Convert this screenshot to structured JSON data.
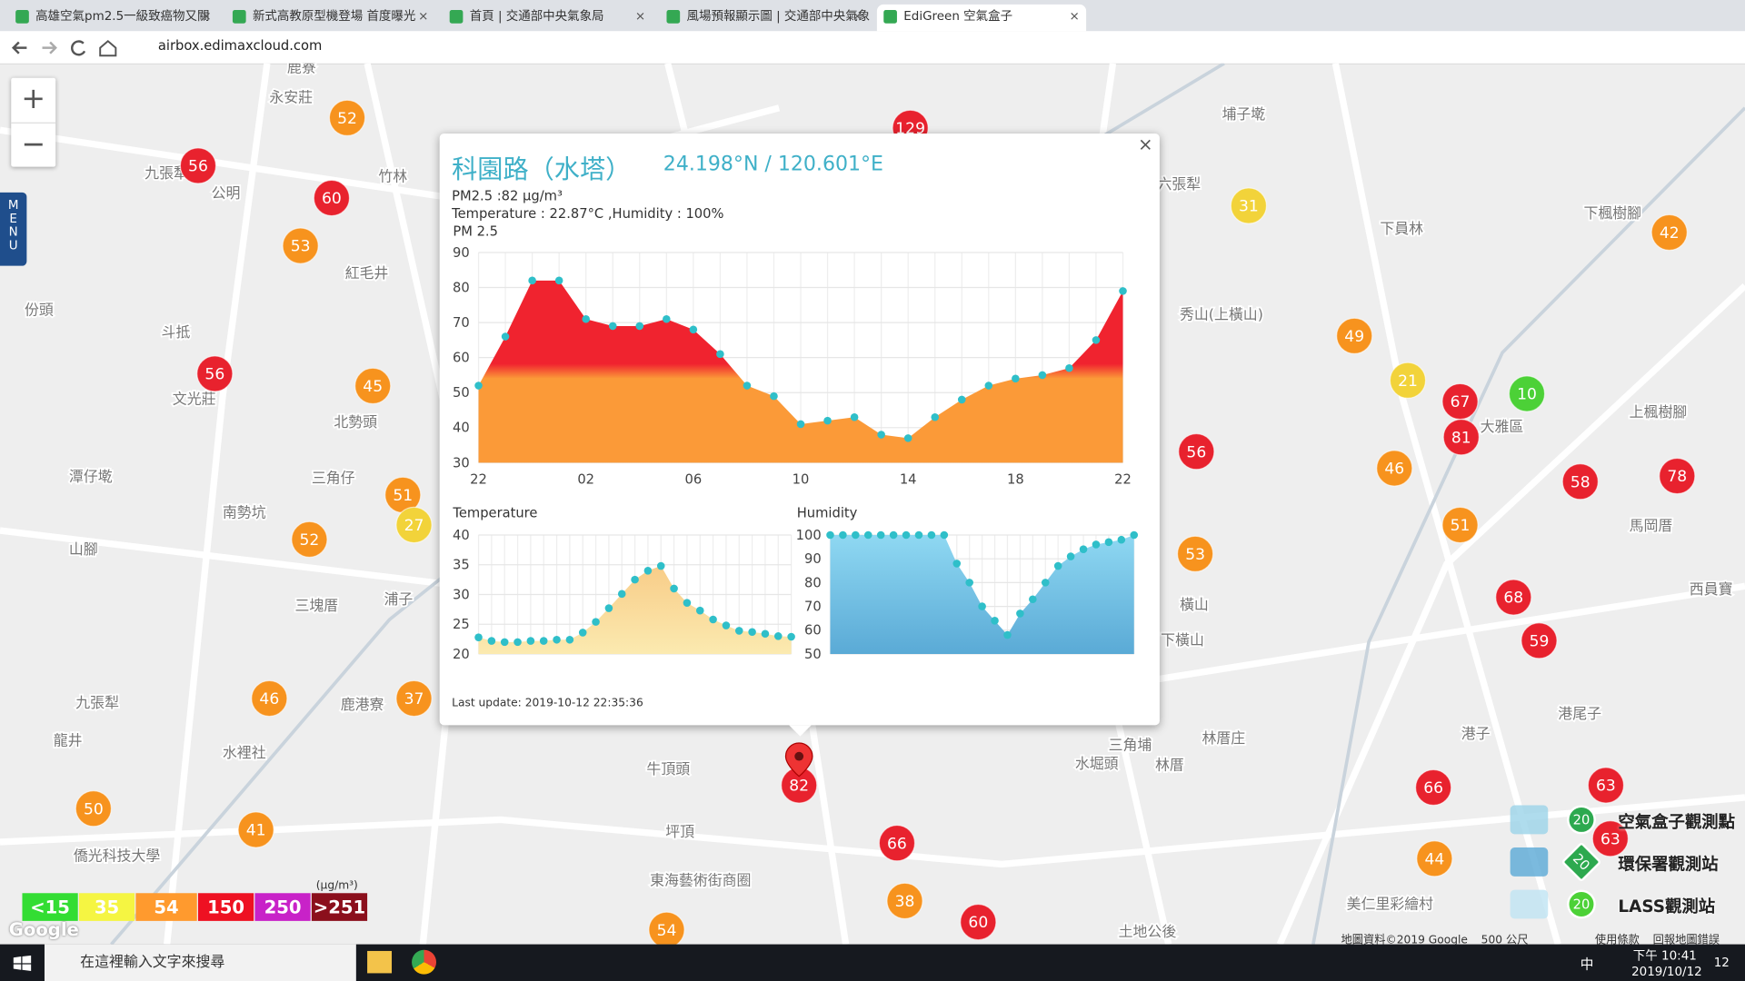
{
  "browser": {
    "tabs": [
      "高雄空氣pm2.5一級致癌物又關",
      "新式高教原型機登場 首度曝光",
      "首頁 | 交通部中央氣象局",
      "風場預報顯示圖 | 交通部中央氣象",
      "EdiGreen 空氣盒子"
    ],
    "url": "airbox.edimaxcloud.com"
  },
  "map": {
    "menu": "MENU",
    "markers": [
      {
        "value": 52,
        "color": "#f7931e"
      },
      {
        "value": 129,
        "color": "#e8222e"
      },
      {
        "value": 56,
        "color": "#e8222e"
      },
      {
        "value": 60,
        "color": "#e8222e"
      },
      {
        "value": 53,
        "color": "#f7931e"
      },
      {
        "value": 31,
        "color": "#f2d33a"
      },
      {
        "value": 42,
        "color": "#f7931e"
      },
      {
        "value": 56,
        "color": "#e8222e"
      },
      {
        "value": 45,
        "color": "#f7931e"
      },
      {
        "value": 49,
        "color": "#f7931e"
      },
      {
        "value": 21,
        "color": "#f2d33a"
      },
      {
        "value": 67,
        "color": "#e8222e"
      },
      {
        "value": 10,
        "color": "#4cd137"
      },
      {
        "value": 81,
        "color": "#e8222e"
      },
      {
        "value": 56,
        "color": "#e8222e"
      },
      {
        "value": 46,
        "color": "#f7931e"
      },
      {
        "value": 58,
        "color": "#e8222e"
      },
      {
        "value": 78,
        "color": "#e8222e"
      },
      {
        "value": 51,
        "color": "#f7931e"
      },
      {
        "value": 27,
        "color": "#f2d33a"
      },
      {
        "value": 52,
        "color": "#f7931e"
      },
      {
        "value": 51,
        "color": "#f7931e"
      },
      {
        "value": 53,
        "color": "#f7931e"
      },
      {
        "value": 68,
        "color": "#e8222e"
      },
      {
        "value": 59,
        "color": "#e8222e"
      },
      {
        "value": 46,
        "color": "#f7931e"
      },
      {
        "value": 37,
        "color": "#f7931e"
      },
      {
        "value": 82,
        "color": "#e8222e"
      },
      {
        "value": 66,
        "color": "#e8222e"
      },
      {
        "value": 63,
        "color": "#e8222e"
      },
      {
        "value": 63,
        "color": "#e8222e"
      },
      {
        "value": 50,
        "color": "#f7931e"
      },
      {
        "value": 41,
        "color": "#f7931e"
      },
      {
        "value": 66,
        "color": "#e8222e"
      },
      {
        "value": 44,
        "color": "#f7931e"
      },
      {
        "value": 38,
        "color": "#f7931e"
      },
      {
        "value": 60,
        "color": "#e8222e"
      },
      {
        "value": 54,
        "color": "#f7931e"
      }
    ],
    "places": [
      "鹿寮",
      "永安莊",
      "九張犁",
      "竹林",
      "紅毛井",
      "份頭",
      "斗抵",
      "文光莊",
      "北勢頭",
      "潭仔墘",
      "三角仔",
      "南勢坑",
      "山腳",
      "三塊厝",
      "浦子",
      "九張犁",
      "龍井",
      "水裡社",
      "鹿港寮",
      "牛頂頭",
      "坪頂",
      "東海藝術街商圈",
      "埔子墘",
      "六張犁",
      "下員林",
      "下楓樹腳",
      "秀山(上橫山)",
      "大雅區",
      "上楓樹腳",
      "馬岡厝",
      "西員寶",
      "橫山",
      "下橫山",
      "港尾子",
      "港子",
      "林厝庄",
      "三角埔",
      "林厝",
      "水堀頭",
      "土地公後",
      "僑光科技大學",
      "美仁里彩繪村",
      "公明"
    ],
    "legend": {
      "unit": "(μg/m³)",
      "items": [
        {
          "label": "<15",
          "color": "#33dd33"
        },
        {
          "label": "35",
          "color": "#f5f542"
        },
        {
          "label": "54",
          "color": "#ff9a2e"
        },
        {
          "label": "150",
          "color": "#ee1122"
        },
        {
          "label": "250",
          "color": "#c822c8"
        },
        {
          "label": ">251",
          "color": "#8b0f1c"
        }
      ]
    },
    "stations": [
      "空氣盒子觀測點",
      "環保署觀測站",
      "LASS觀測站"
    ],
    "station_icon_value": "20",
    "attribution": [
      "地圖資料©2019 Google",
      "500 公尺",
      "使用條款",
      "回報地圖錯誤"
    ],
    "google": "Google"
  },
  "popup": {
    "title": "科園路（水塔）",
    "coords": "24.198°N / 120.601°E",
    "pm": "PM2.5 :82 μg/m³",
    "detail": "Temperature : 22.87°C ,Humidity : 100%",
    "updated": "Last update: 2019-10-12 22:35:36",
    "charts": [
      {
        "type": "area",
        "title": "PM 2.5",
        "categories": [
          "22",
          null,
          null,
          null,
          "02",
          null,
          null,
          null,
          "06",
          null,
          null,
          null,
          "10",
          null,
          null,
          null,
          "14",
          null,
          null,
          null,
          "18",
          null,
          null,
          null,
          "22"
        ],
        "values": [
          52,
          66,
          82,
          82,
          71,
          69,
          69,
          71,
          68,
          61,
          52,
          49,
          41,
          42,
          43,
          38,
          37,
          43,
          48,
          52,
          54,
          55,
          57,
          65,
          79
        ],
        "ylim": [
          30,
          90
        ],
        "yticks": [
          30,
          40,
          50,
          60,
          70,
          80,
          90
        ],
        "colors": [
          "#f0232f",
          "#fb9a38"
        ],
        "point_color": "#2fbfc9",
        "grid": true
      },
      {
        "type": "area",
        "title": "Temperature",
        "values": [
          22.8,
          22.2,
          22,
          22,
          22.2,
          22.2,
          22.4,
          22.4,
          23.6,
          25.4,
          27.7,
          30.1,
          32.5,
          34,
          34.8,
          31,
          28.6,
          27.3,
          25.8,
          24.8,
          23.9,
          23.7,
          23.4,
          23,
          22.9
        ],
        "ylim": [
          20,
          40
        ],
        "yticks": [
          20,
          25,
          30,
          35,
          40
        ],
        "colors": [
          "#f7c27a",
          "#fbeab0"
        ],
        "point_color": "#2fbfc9",
        "grid": true
      },
      {
        "type": "area",
        "title": "Humidity",
        "values": [
          100,
          100,
          100,
          100,
          100,
          100,
          100,
          100,
          100,
          100,
          88,
          80,
          70,
          64,
          58,
          67,
          73,
          80,
          87,
          91,
          94,
          96,
          97,
          98,
          100
        ],
        "ylim": [
          50,
          100
        ],
        "yticks": [
          50,
          60,
          70,
          80,
          90,
          100
        ],
        "colors": [
          "#8fd8f2",
          "#5aaad6"
        ],
        "point_color": "#2fbfc9",
        "grid": true
      }
    ]
  },
  "taskbar": {
    "search": "在這裡輸入文字來搜尋",
    "ime": "中",
    "time": "下午 10:41",
    "date": "2019/10/12",
    "notifications": "12"
  }
}
